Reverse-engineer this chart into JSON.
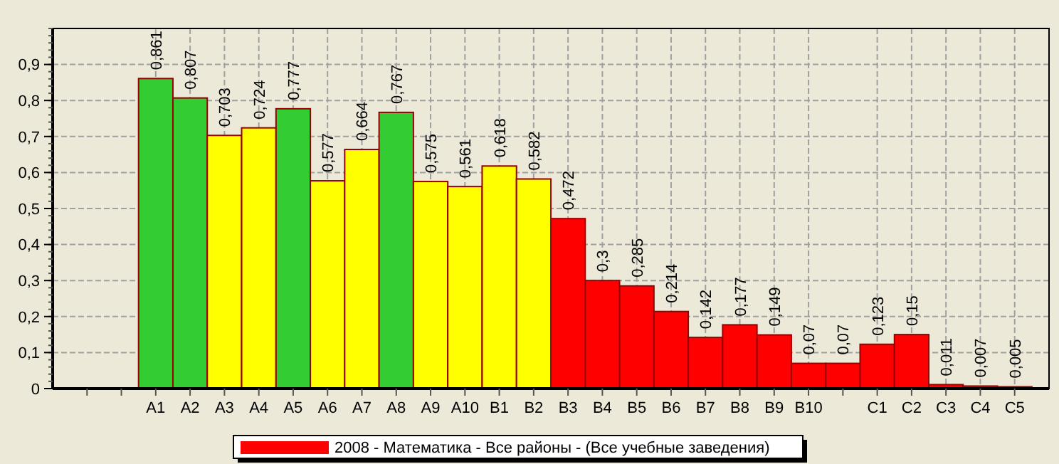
{
  "chart_data": {
    "type": "bar",
    "categories": [
      null,
      null,
      "A1",
      "A2",
      "A3",
      "A4",
      "A5",
      "A6",
      "A7",
      "A8",
      "A9",
      "A10",
      "B1",
      "B2",
      "B3",
      "B4",
      "B5",
      "B6",
      "B7",
      "B8",
      "B9",
      "B10",
      null,
      "C1",
      "C2",
      "C3",
      "C4",
      "C5"
    ],
    "series": [
      {
        "name": "2008 - Математика - Все районы - (Все учебные заведения)",
        "color": "#ff0000",
        "values": [
          null,
          null,
          0.861,
          0.807,
          0.703,
          0.724,
          0.777,
          0.577,
          0.664,
          0.767,
          0.575,
          0.561,
          0.618,
          0.582,
          0.472,
          0.3,
          0.285,
          0.214,
          0.142,
          0.177,
          0.149,
          0.07,
          0.07,
          0.123,
          0.15,
          0.011,
          0.007,
          0.005
        ],
        "colors": [
          null,
          null,
          "#33cc33",
          "#33cc33",
          "#ffff00",
          "#ffff00",
          "#33cc33",
          "#ffff00",
          "#ffff00",
          "#33cc33",
          "#ffff00",
          "#ffff00",
          "#ffff00",
          "#ffff00",
          "#ff0000",
          "#ff0000",
          "#ff0000",
          "#ff0000",
          "#ff0000",
          "#ff0000",
          "#ff0000",
          "#ff0000",
          "#ff0000",
          "#ff0000",
          "#ff0000",
          "#ff0000",
          "#ff0000",
          "#ff0000"
        ],
        "value_labels": [
          null,
          null,
          "0,861",
          "0,807",
          "0,703",
          "0,724",
          "0,777",
          "0,577",
          "0,664",
          "0,767",
          "0,575",
          "0,561",
          "0,618",
          "0,582",
          "0,472",
          "0,3",
          "0,285",
          "0,214",
          "0,142",
          "0,177",
          "0,149",
          "0,07",
          "0,07",
          "0,123",
          "0,15",
          "0,011",
          "0,007",
          "0,005"
        ]
      }
    ],
    "ylim": [
      0,
      1
    ],
    "yticks": [
      0,
      {
        "value": 0.1,
        "label": "0,1"
      },
      {
        "value": 0.2,
        "label": "0,2"
      },
      {
        "value": 0.3,
        "label": "0,3"
      },
      {
        "value": 0.4,
        "label": "0,4"
      },
      {
        "value": 0.5,
        "label": "0,5"
      },
      {
        "value": 0.6,
        "label": "0,6"
      },
      {
        "value": 0.7,
        "label": "0,7"
      },
      {
        "value": 0.8,
        "label": "0,8"
      },
      {
        "value": 0.9,
        "label": "0,9"
      }
    ],
    "grid": true,
    "legend": "bottom"
  }
}
